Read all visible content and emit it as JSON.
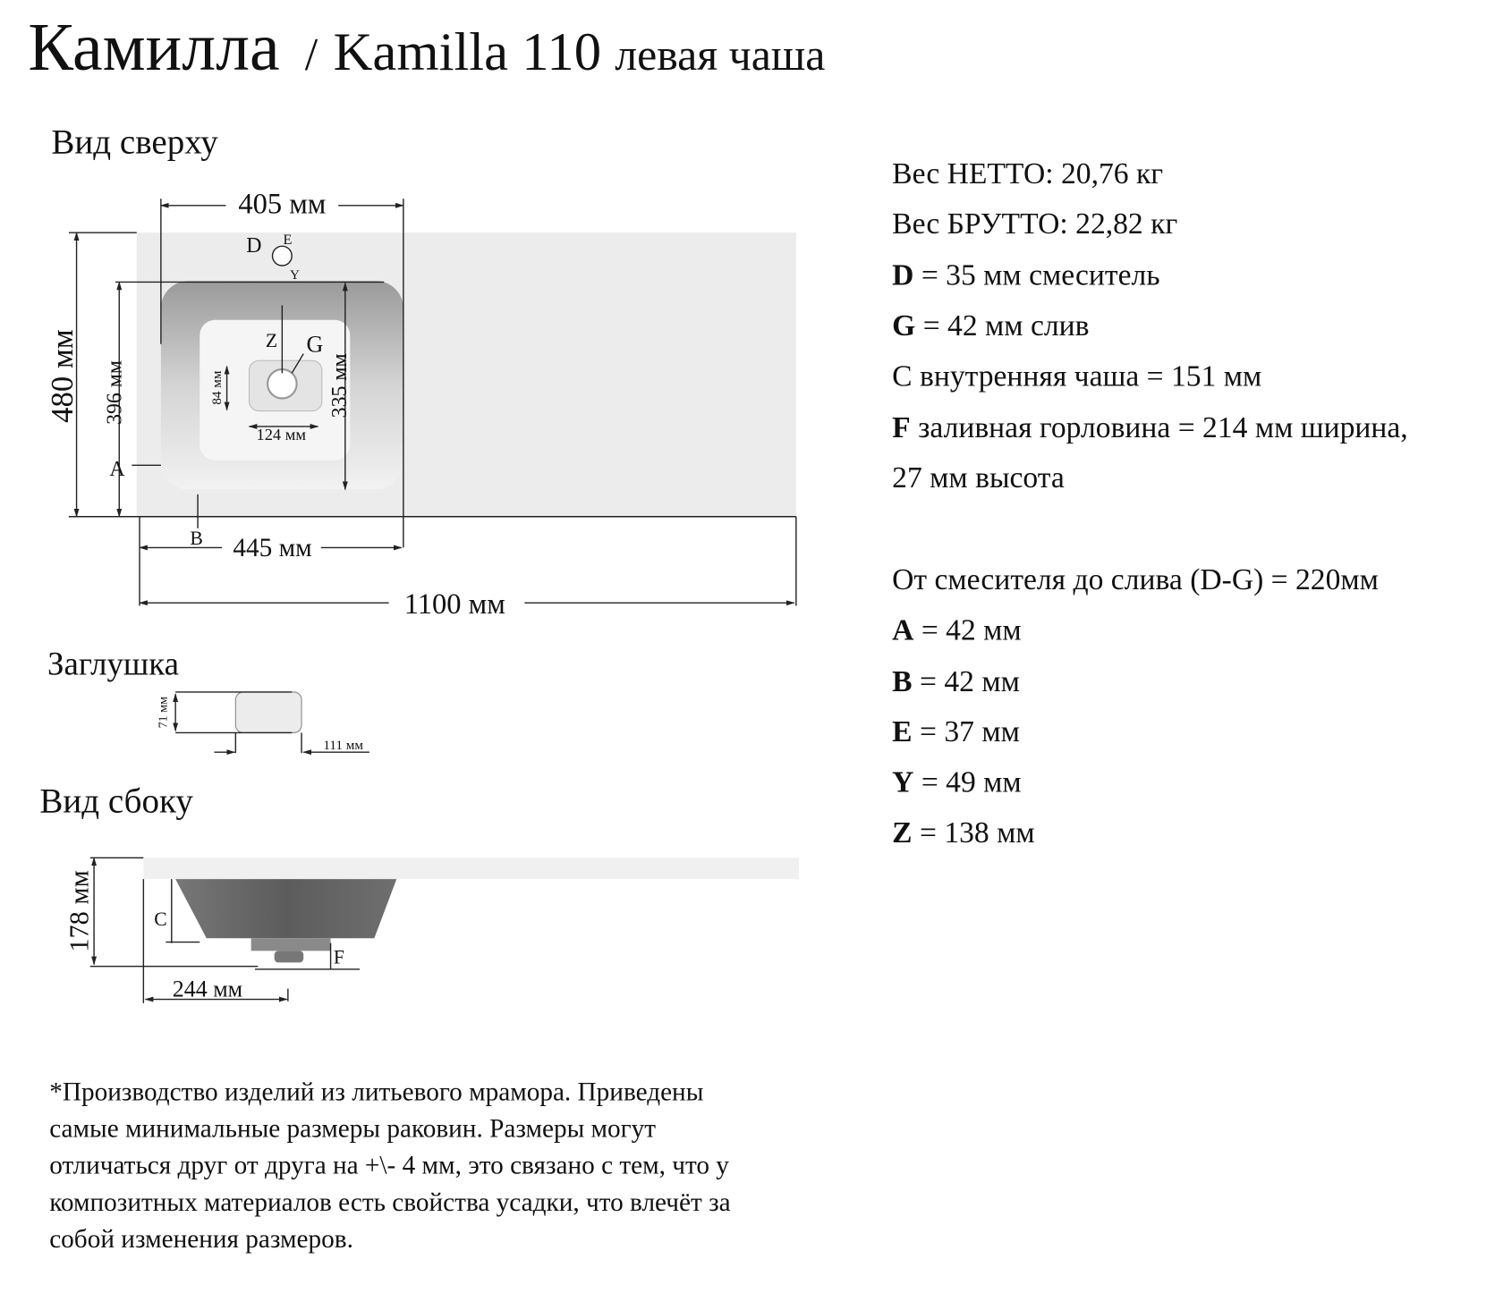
{
  "title": {
    "ru": "Камилла",
    "sep": "/",
    "en": "Kamilla 110",
    "variant": "левая чаша"
  },
  "top_view": {
    "heading": "Вид сверху",
    "dims": {
      "bowl_width": "405 мм",
      "depth": "480 мм",
      "bowl_depth_from_front": "396 мм",
      "bowl_inner": "335 мм",
      "drain_h": "84 мм",
      "drain_w": "124 мм",
      "bowl_offset": "445 мм",
      "total_width": "1100 мм"
    },
    "markers": {
      "A": "A",
      "B": "B",
      "D": "D",
      "E": "E",
      "Y": "Y",
      "Z": "Z",
      "G": "G"
    }
  },
  "plug": {
    "heading": "Заглушка",
    "height": "71 мм",
    "width": "111 мм"
  },
  "side_view": {
    "heading": "Вид сбоку",
    "height": "178 мм",
    "offset": "244 мм",
    "markers": {
      "C": "C",
      "F": "F"
    }
  },
  "specs": {
    "net_weight": "Вес НЕТТО: 20,76 кг",
    "gross_weight": "Вес БРУТТО: 22,82 кг",
    "lines": [
      {
        "key": "D",
        "text": " = 35 мм смеситель",
        "bold": true
      },
      {
        "key": "G",
        "text": " = 42 мм слив",
        "bold": true
      },
      {
        "key": "C",
        "text": " внутренняя чаша = 151 мм",
        "bold": false
      },
      {
        "key": "F",
        "text": " заливная горловина = 214 мм ширина,",
        "bold": true
      }
    ],
    "continuation": "27 мм высота",
    "distance": "От смесителя до слива (D-G) = 220мм",
    "params": [
      {
        "key": "A",
        "text": " = 42 мм"
      },
      {
        "key": "B",
        "text": " = 42 мм"
      },
      {
        "key": "E",
        "text": " = 37 мм"
      },
      {
        "key": "Y",
        "text": " = 49 мм"
      },
      {
        "key": "Z",
        "text": " = 138 мм"
      }
    ]
  },
  "footnote": [
    "*Производство изделий из литьевого мрамора. Приведены",
    "самые минимальные размеры раковин. Размеры могут",
    "отличаться друг от друга на +\\- 4 мм, это связано с тем, что у",
    "композитных материалов есть свойства усадки, что влечёт за",
    "собой изменения размеров."
  ],
  "colors": {
    "slab": "#ececec",
    "basin_side": "#6a6a6a"
  }
}
